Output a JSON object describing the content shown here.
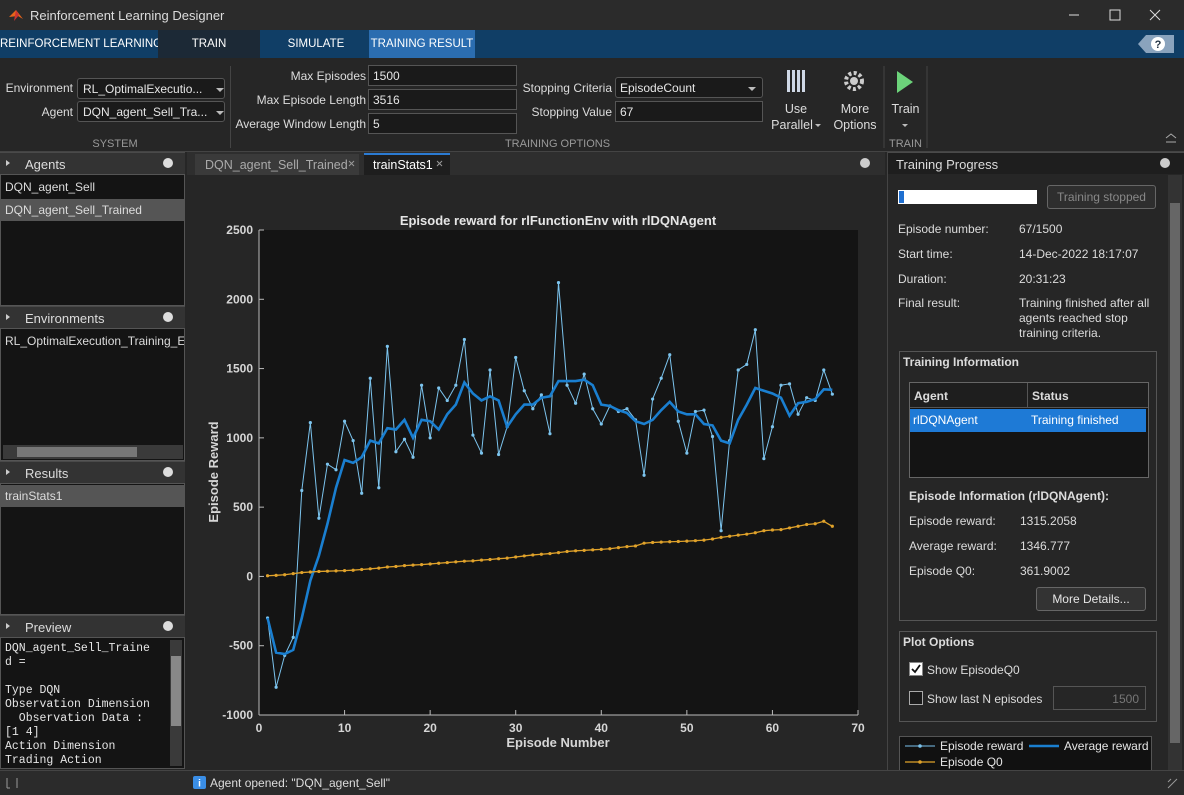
{
  "window": {
    "title": "Reinforcement Learning Designer"
  },
  "tabs": [
    "REINFORCEMENT LEARNING",
    "TRAIN",
    "SIMULATE",
    "TRAINING RESULT"
  ],
  "toolstrip": {
    "environment_label": "Environment",
    "environment": "RL_OptimalExecutio...",
    "agent_label": "Agent",
    "agent": "DQN_agent_Sell_Tra...",
    "system": "SYSTEM",
    "max_episodes_label": "Max Episodes",
    "max_episodes": "1500",
    "max_episode_length_label": "Max Episode Length",
    "max_episode_length": "3516",
    "average_window_length_label": "Average Window Length",
    "average_window_length": "5",
    "stopping_criteria_label": "Stopping Criteria",
    "stopping_criteria": "EpisodeCount",
    "stopping_value_label": "Stopping Value",
    "stopping_value": "67",
    "training_options": "TRAINING OPTIONS",
    "use_parallel": [
      "Use",
      "Parallel"
    ],
    "more_options": [
      "More",
      "Options"
    ],
    "train": "Train",
    "train_group": "TRAIN"
  },
  "agents": {
    "title": "Agents",
    "items": [
      "DQN_agent_Sell",
      "DQN_agent_Sell_Trained"
    ]
  },
  "environments": {
    "title": "Environments",
    "items": [
      "RL_OptimalExecution_Training_E"
    ]
  },
  "results": {
    "title": "Results",
    "items": [
      "trainStats1"
    ]
  },
  "preview": {
    "title": "Preview",
    "lines": [
      "DQN_agent_Sell_Traine",
      "d =",
      "Type DQN",
      "Observation Dimension",
      "  Observation Data :",
      "[1 4]",
      "Action Dimension",
      "Trading Action"
    ]
  },
  "document_tabs": [
    "DQN_agent_Sell_Trained",
    "trainStats1"
  ],
  "status": "Agent opened: \"DQN_agent_Sell\"",
  "training_progress": {
    "title": "Training Progress",
    "button": "Training stopped",
    "fields": [
      {
        "label": "Episode number:",
        "value": "67/1500"
      },
      {
        "label": "Start time:",
        "value": "14-Dec-2022 18:17:07"
      },
      {
        "label": "Duration:",
        "value": "20:31:23"
      },
      {
        "label": "Final result:",
        "value": "Training finished after all agents reached stop training criteria."
      }
    ],
    "training_information": {
      "title": "Training Information",
      "headers": [
        "Agent",
        "Status"
      ],
      "rows": [
        [
          "rlDQNAgent",
          "Training finished"
        ]
      ]
    },
    "episode_information": {
      "title": "Episode Information (rlDQNAgent):",
      "fields": [
        {
          "label": "Episode reward:",
          "value": "1315.2058"
        },
        {
          "label": "Average reward:",
          "value": "1346.777"
        },
        {
          "label": "Episode Q0:",
          "value": "361.9002"
        }
      ]
    },
    "more_details": "More Details...",
    "plot_options": {
      "title": "Plot Options",
      "show_q0": "Show EpisodeQ0",
      "show_last": "Show last N episodes",
      "last_n": "1500"
    }
  },
  "chart_data": {
    "type": "line",
    "title": "Episode reward for rlFunctionEnv with rlDQNAgent",
    "xlabel": "Episode Number",
    "ylabel": "Episode Reward",
    "x": [
      1,
      2,
      3,
      4,
      5,
      6,
      7,
      8,
      9,
      10,
      11,
      12,
      13,
      14,
      15,
      16,
      17,
      18,
      19,
      20,
      21,
      22,
      23,
      24,
      25,
      26,
      27,
      28,
      29,
      30,
      31,
      32,
      33,
      34,
      35,
      36,
      37,
      38,
      39,
      40,
      41,
      42,
      43,
      44,
      45,
      46,
      47,
      48,
      49,
      50,
      51,
      52,
      53,
      54,
      55,
      56,
      57,
      58,
      59,
      60,
      61,
      62,
      63,
      64,
      65,
      66,
      67
    ],
    "series": [
      {
        "name": "Episode reward",
        "color": "#7cc4ee",
        "values": [
          -300,
          -800,
          -570,
          -440,
          620,
          1110,
          420,
          810,
          770,
          1120,
          980,
          600,
          1430,
          640,
          1660,
          900,
          990,
          860,
          1380,
          1000,
          1360,
          1270,
          1380,
          1710,
          1020,
          890,
          1490,
          880,
          1080,
          1580,
          1340,
          1210,
          1310,
          1030,
          2120,
          1380,
          1250,
          1460,
          1210,
          1100,
          1230,
          1190,
          1210,
          1130,
          730,
          1280,
          1430,
          1600,
          1120,
          890,
          1190,
          1200,
          1010,
          330,
          980,
          1490,
          1530,
          1780,
          850,
          1080,
          1380,
          1390,
          1170,
          1290,
          1270,
          1490,
          1315.2058
        ]
      },
      {
        "name": "Average reward",
        "color": "#1a7fd0",
        "values": [
          -300,
          -550,
          -560,
          -530,
          -300,
          -30,
          150,
          380,
          640,
          840,
          820,
          860,
          980,
          960,
          1070,
          1060,
          1130,
          1000,
          1130,
          1120,
          1060,
          1170,
          1240,
          1400,
          1320,
          1270,
          1300,
          1270,
          1080,
          1170,
          1240,
          1240,
          1290,
          1300,
          1410,
          1410,
          1410,
          1420,
          1380,
          1240,
          1230,
          1200,
          1180,
          1120,
          1100,
          1130,
          1200,
          1260,
          1190,
          1170,
          1170,
          1100,
          1090,
          980,
          960,
          1130,
          1240,
          1360,
          1340,
          1320,
          1290,
          1160,
          1250,
          1260,
          1280,
          1350,
          1346.777
        ]
      },
      {
        "name": "Episode Q0",
        "color": "#e0a22a",
        "values": [
          5,
          8,
          12,
          20,
          28,
          32,
          36,
          38,
          40,
          42,
          45,
          50,
          55,
          60,
          68,
          72,
          78,
          82,
          85,
          90,
          95,
          100,
          105,
          110,
          112,
          118,
          122,
          128,
          132,
          140,
          148,
          155,
          160,
          165,
          172,
          180,
          185,
          188,
          192,
          195,
          200,
          208,
          215,
          220,
          240,
          245,
          248,
          250,
          252,
          255,
          258,
          262,
          270,
          282,
          290,
          298,
          305,
          315,
          330,
          335,
          338,
          350,
          362,
          375,
          380,
          398,
          361.9002
        ]
      }
    ],
    "xlim": [
      0,
      70
    ],
    "ylim": [
      -1000,
      2500
    ],
    "xticks": [
      0,
      10,
      20,
      30,
      40,
      50,
      60,
      70
    ],
    "yticks": [
      -1000,
      -500,
      0,
      500,
      1000,
      1500,
      2000,
      2500
    ]
  }
}
